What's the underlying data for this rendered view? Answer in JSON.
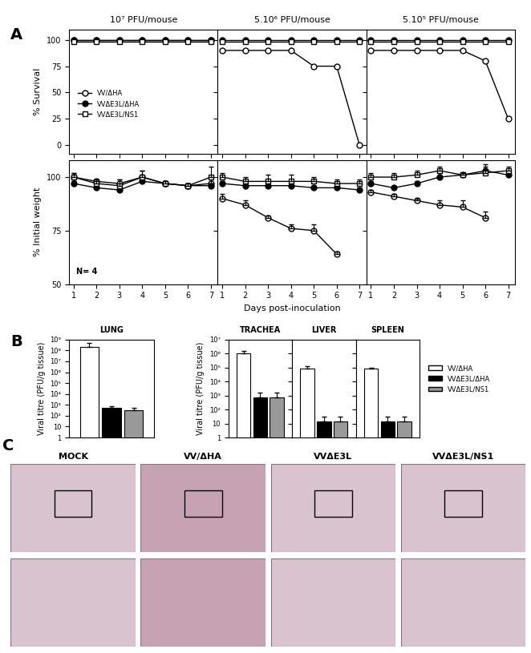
{
  "panel_labels": [
    "A",
    "B",
    "C"
  ],
  "chart_data": [
    {
      "type": "line",
      "title": "10⁷ PFU/mouse",
      "ylabel": "% Survival",
      "x": [
        1,
        2,
        3,
        4,
        5,
        6,
        7
      ],
      "xlim": [
        0.8,
        7.3
      ],
      "xticks": [
        1,
        2,
        3,
        4,
        5,
        6,
        7
      ],
      "ylim": [
        -8,
        110
      ],
      "yticks": [
        0,
        25,
        50,
        75,
        100
      ],
      "tick_labels": "y",
      "legend": "center left",
      "series": [
        {
          "name": "VV/ΔHA",
          "color": "black",
          "marker": "open_circle",
          "values": [
            100,
            100,
            100,
            100,
            100,
            100,
            100
          ]
        },
        {
          "name": "VVΔE3L/ΔHA",
          "color": "black",
          "marker": "filled_circle",
          "values": [
            100,
            100,
            100,
            100,
            100,
            100,
            100
          ]
        },
        {
          "name": "VVΔE3L/NS1",
          "color": "black",
          "marker": "open_square",
          "values": [
            98,
            98,
            98,
            98,
            98,
            98,
            98
          ]
        }
      ]
    },
    {
      "type": "line",
      "title": "5.10⁶ PFU/mouse",
      "x": [
        1,
        2,
        3,
        4,
        5,
        6,
        7
      ],
      "xlim": [
        0.8,
        7.3
      ],
      "xticks": [
        1,
        2,
        3,
        4,
        5,
        6,
        7
      ],
      "ylim": [
        -8,
        110
      ],
      "yticks": [
        0,
        25,
        50,
        75,
        100
      ],
      "tick_labels": false,
      "series": [
        {
          "name": "VV/ΔHA",
          "color": "black",
          "marker": "open_circle",
          "values": [
            90,
            90,
            90,
            90,
            75,
            75,
            0
          ]
        },
        {
          "name": "VVΔE3L/ΔHA",
          "color": "black",
          "marker": "filled_circle",
          "values": [
            100,
            100,
            100,
            100,
            100,
            100,
            100
          ]
        },
        {
          "name": "VVΔE3L/NS1",
          "color": "black",
          "marker": "open_square",
          "values": [
            98,
            98,
            98,
            98,
            98,
            98,
            98
          ]
        }
      ]
    },
    {
      "type": "line",
      "title": "5.10⁵ PFU/mouse",
      "x": [
        1,
        2,
        3,
        4,
        5,
        6,
        7
      ],
      "xlim": [
        0.8,
        7.3
      ],
      "xticks": [
        1,
        2,
        3,
        4,
        5,
        6,
        7
      ],
      "ylim": [
        -8,
        110
      ],
      "yticks": [
        0,
        25,
        50,
        75,
        100
      ],
      "tick_labels": false,
      "series": [
        {
          "name": "VV/ΔHA",
          "color": "black",
          "marker": "open_circle",
          "values": [
            90,
            90,
            90,
            90,
            90,
            80,
            25
          ]
        },
        {
          "name": "VVΔE3L/ΔHA",
          "color": "black",
          "marker": "filled_circle",
          "values": [
            100,
            100,
            100,
            100,
            100,
            100,
            100
          ]
        },
        {
          "name": "VVΔE3L/NS1",
          "color": "black",
          "marker": "open_square",
          "values": [
            98,
            98,
            98,
            98,
            98,
            98,
            98
          ]
        }
      ]
    },
    {
      "type": "line",
      "ylabel": "% Initial weight",
      "annotation": "N= 4",
      "x": [
        1,
        2,
        3,
        4,
        5,
        6,
        7
      ],
      "xlim": [
        0.8,
        7.3
      ],
      "xticks": [
        1,
        2,
        3,
        4,
        5,
        6,
        7
      ],
      "ylim": [
        50,
        108
      ],
      "yticks": [
        50,
        75,
        100
      ],
      "series": [
        {
          "name": "VV/ΔHA",
          "color": "black",
          "marker": "open_circle",
          "values": [
            100,
            98,
            97,
            100,
            97,
            96,
            97
          ],
          "errors": [
            2,
            1,
            2,
            3,
            1,
            1,
            2
          ]
        },
        {
          "name": "VVΔE3L/ΔHA",
          "color": "black",
          "marker": "filled_circle",
          "values": [
            97,
            95,
            94,
            98,
            97,
            96,
            96
          ],
          "errors": [
            1,
            1,
            1,
            2,
            1,
            1,
            1
          ]
        },
        {
          "name": "VVΔE3L/NS1",
          "color": "black",
          "marker": "open_square",
          "values": [
            100,
            97,
            96,
            100,
            97,
            96,
            100
          ],
          "errors": [
            2,
            2,
            3,
            3,
            1,
            1,
            5
          ]
        }
      ]
    },
    {
      "type": "line",
      "xlabel": "Days post-inoculation",
      "x": [
        1,
        2,
        3,
        4,
        5,
        6,
        7
      ],
      "xlim": [
        0.8,
        7.3
      ],
      "xticks": [
        1,
        2,
        3,
        4,
        5,
        6,
        7
      ],
      "ylim": [
        50,
        108
      ],
      "yticks": [
        50,
        75,
        100
      ],
      "tick_labels": "x",
      "series": [
        {
          "name": "VV/ΔHA",
          "color": "black",
          "marker": "open_circle",
          "values": [
            90,
            87,
            81,
            76,
            75,
            64,
            null
          ],
          "errors": [
            2,
            2,
            1,
            2,
            3,
            1,
            null
          ]
        },
        {
          "name": "VVΔE3L/ΔHA",
          "color": "black",
          "marker": "filled_circle",
          "values": [
            97,
            96,
            96,
            96,
            95,
            95,
            94
          ],
          "errors": [
            1,
            1,
            1,
            1,
            1,
            1,
            1
          ]
        },
        {
          "name": "VVΔE3L/NS1",
          "color": "black",
          "marker": "open_square",
          "values": [
            100,
            98,
            98,
            98,
            98,
            97,
            97
          ],
          "errors": [
            2,
            2,
            3,
            3,
            2,
            2,
            2
          ]
        }
      ]
    },
    {
      "type": "line",
      "x": [
        1,
        2,
        3,
        4,
        5,
        6,
        7
      ],
      "xlim": [
        0.8,
        7.3
      ],
      "xticks": [
        1,
        2,
        3,
        4,
        5,
        6,
        7
      ],
      "ylim": [
        50,
        108
      ],
      "yticks": [
        50,
        75,
        100
      ],
      "tick_labels": "x",
      "series": [
        {
          "name": "VV/ΔHA",
          "color": "black",
          "marker": "open_circle",
          "values": [
            93,
            91,
            89,
            87,
            86,
            81,
            null
          ],
          "errors": [
            1,
            1,
            1,
            2,
            3,
            3,
            null
          ]
        },
        {
          "name": "VVΔE3L/ΔHA",
          "color": "black",
          "marker": "filled_circle",
          "values": [
            97,
            95,
            97,
            100,
            101,
            103,
            101
          ],
          "errors": [
            1,
            1,
            1,
            2,
            1,
            3,
            1
          ]
        },
        {
          "name": "VVΔE3L/NS1",
          "color": "black",
          "marker": "open_square",
          "values": [
            100,
            100,
            101,
            103,
            101,
            102,
            103
          ],
          "errors": [
            2,
            2,
            2,
            2,
            1,
            3,
            2
          ]
        }
      ]
    },
    {
      "type": "bar",
      "title": "LUNG",
      "ylabel": "Viral titre (PFU/g tissue)",
      "log": "y",
      "categories": [
        null
      ],
      "ylim": [
        1,
        1000000000
      ],
      "tick_labels": "y",
      "yticks": [
        1,
        10,
        {
          "value": 100,
          "label": "10²"
        },
        {
          "value": 1000,
          "label": "10³"
        },
        {
          "value": 10000,
          "label": "10⁴"
        },
        {
          "value": 100000,
          "label": "10⁵"
        },
        {
          "value": 1000000,
          "label": "10⁶"
        },
        {
          "value": 10000000,
          "label": "10⁷"
        },
        {
          "value": 100000000,
          "label": "10⁸"
        },
        {
          "value": 1000000000,
          "label": "10⁹"
        }
      ],
      "series": [
        {
          "name": "VV/ΔHA",
          "color": "#ffffff",
          "values": [
            200000000
          ],
          "errors": [
            300000000
          ]
        },
        {
          "name": "VVΔE3L/ΔHA",
          "color": "#000000",
          "values": [
            500
          ],
          "errors": [
            300
          ]
        },
        {
          "name": "VVΔE3L/NS1",
          "color": "#999999",
          "values": [
            300
          ],
          "errors": [
            200
          ]
        }
      ]
    },
    {
      "type": "bar",
      "title": "TRACHEA",
      "ylabel": "Viral titre (PFU/g tissue)",
      "log": "y",
      "categories": [
        null
      ],
      "ylim": [
        1,
        10000000
      ],
      "tick_labels": "y",
      "yticks": [
        1,
        10,
        {
          "value": 100,
          "label": "10²"
        },
        {
          "value": 1000,
          "label": "10³"
        },
        {
          "value": 10000,
          "label": "10⁴"
        },
        {
          "value": 100000,
          "label": "10⁵"
        },
        {
          "value": 1000000,
          "label": "10⁶"
        },
        {
          "value": 10000000,
          "label": "10⁷"
        }
      ],
      "series": [
        {
          "name": "VV/ΔHA",
          "color": "#ffffff",
          "values": [
            1000000
          ],
          "errors": [
            600000
          ]
        },
        {
          "name": "VVΔE3L/ΔHA",
          "color": "#000000",
          "values": [
            700
          ],
          "errors": [
            1000
          ]
        },
        {
          "name": "VVΔE3L/NS1",
          "color": "#999999",
          "values": [
            700
          ],
          "errors": [
            900
          ]
        }
      ]
    },
    {
      "type": "bar",
      "title": "LIVER",
      "log": "y",
      "categories": [
        null
      ],
      "ylim": [
        1,
        10000000
      ],
      "tick_labels": false,
      "yticks": [
        1,
        10,
        {
          "value": 100,
          "label": "10²"
        },
        {
          "value": 1000,
          "label": "10³"
        },
        {
          "value": 10000,
          "label": "10⁴"
        },
        {
          "value": 100000,
          "label": "10⁵"
        },
        {
          "value": 1000000,
          "label": "10⁶"
        },
        {
          "value": 10000000,
          "label": "10⁷"
        }
      ],
      "series": [
        {
          "name": "VV/ΔHA",
          "color": "#ffffff",
          "values": [
            80000
          ],
          "errors": [
            40000
          ]
        },
        {
          "name": "VVΔE3L/ΔHA",
          "color": "#000000",
          "values": [
            15
          ],
          "errors": [
            15
          ]
        },
        {
          "name": "VVΔE3L/NS1",
          "color": "#999999",
          "values": [
            15
          ],
          "errors": [
            15
          ]
        }
      ]
    },
    {
      "type": "bar",
      "title": "SPLEEN",
      "log": "y",
      "legend": "right",
      "categories": [
        null
      ],
      "ylim": [
        1,
        10000000
      ],
      "tick_labels": false,
      "yticks": [
        1,
        10,
        {
          "value": 100,
          "label": "10²"
        },
        {
          "value": 1000,
          "label": "10³"
        },
        {
          "value": 10000,
          "label": "10⁴"
        },
        {
          "value": 100000,
          "label": "10⁵"
        },
        {
          "value": 1000000,
          "label": "10⁶"
        },
        {
          "value": 10000000,
          "label": "10⁷"
        }
      ],
      "series": [
        {
          "name": "VV/ΔHA",
          "color": "#ffffff",
          "values": [
            80000
          ],
          "errors": [
            20000
          ]
        },
        {
          "name": "VVΔE3L/ΔHA",
          "color": "#000000",
          "values": [
            15
          ],
          "errors": [
            15
          ]
        },
        {
          "name": "VVΔE3L/NS1",
          "color": "#999999",
          "values": [
            15
          ],
          "errors": [
            15
          ]
        }
      ]
    }
  ],
  "micrographs": {
    "labels": [
      "MOCK",
      "VV/ΔHA",
      "VVΔE3L",
      "VVΔE3L/NS1"
    ]
  }
}
